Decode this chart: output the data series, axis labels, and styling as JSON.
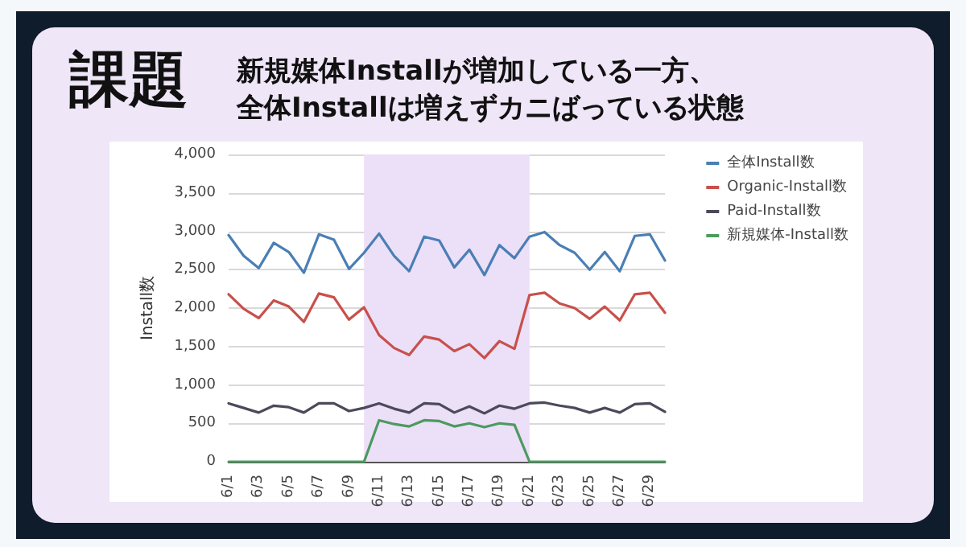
{
  "chart_data": {
    "type": "line",
    "title": "課題",
    "subtitle": "新規媒体Installが増加している一方、全体Installは増えずカニばっている状態",
    "ylabel": "Install数",
    "x": [
      "--06-01",
      "--06-02",
      "--06-03",
      "--06-04",
      "--06-05",
      "--06-06",
      "--06-07",
      "--06-08",
      "--06-09",
      "--06-10",
      "--06-11",
      "--06-12",
      "--06-13",
      "--06-14",
      "--06-15",
      "--06-16",
      "--06-17",
      "--06-18",
      "--06-19",
      "--06-20",
      "--06-21",
      "--06-22",
      "--06-23",
      "--06-24",
      "--06-25",
      "--06-26",
      "--06-27",
      "--06-28",
      "--06-29",
      "--06-30"
    ],
    "xlim": [
      "--06-01",
      "--06-30"
    ],
    "xticks": [
      {
        "value": "--06-01",
        "label": "6/1"
      },
      {
        "value": "--06-03",
        "label": "6/3"
      },
      {
        "value": "--06-05",
        "label": "6/5"
      },
      {
        "value": "--06-07",
        "label": "6/7"
      },
      {
        "value": "--06-09",
        "label": "6/9"
      },
      {
        "value": "--06-11",
        "label": "6/11"
      },
      {
        "value": "--06-13",
        "label": "6/13"
      },
      {
        "value": "--06-15",
        "label": "6/15"
      },
      {
        "value": "--06-17",
        "label": "6/17"
      },
      {
        "value": "--06-19",
        "label": "6/19"
      },
      {
        "value": "--06-21",
        "label": "6/21"
      },
      {
        "value": "--06-23",
        "label": "6/23"
      },
      {
        "value": "--06-25",
        "label": "6/25"
      },
      {
        "value": "--06-27",
        "label": "6/27"
      },
      {
        "value": "--06-29",
        "label": "6/29"
      }
    ],
    "ylim": [
      0,
      4000
    ],
    "yticks": [
      0,
      {
        "value": 500,
        "label": "500"
      },
      {
        "value": 1000,
        "label": "1,000"
      },
      {
        "value": 1500,
        "label": "1,500"
      },
      {
        "value": 2000,
        "label": "2,000"
      },
      {
        "value": 2500,
        "label": "2,500"
      },
      {
        "value": 3000,
        "label": "3,000"
      },
      {
        "value": 3500,
        "label": "3,500"
      },
      {
        "value": 4000,
        "label": "4,000"
      }
    ],
    "series": [
      {
        "name": "全体Install数",
        "color": "#4a7fb5",
        "values": [
          2950,
          2680,
          2520,
          2850,
          2730,
          2460,
          2960,
          2890,
          2510,
          2720,
          2970,
          2680,
          2480,
          2930,
          2880,
          2530,
          2760,
          2430,
          2820,
          2650,
          2930,
          2990,
          2820,
          2720,
          2500,
          2730,
          2480,
          2940,
          2960,
          2620
        ]
      },
      {
        "name": "Organic-Install数",
        "color": "#c8504b",
        "values": [
          2180,
          1990,
          1870,
          2100,
          2020,
          1820,
          2190,
          2140,
          1850,
          2010,
          1650,
          1480,
          1390,
          1630,
          1590,
          1440,
          1530,
          1350,
          1570,
          1470,
          2170,
          2200,
          2060,
          2000,
          1860,
          2020,
          1840,
          2180,
          2200,
          1940
        ]
      },
      {
        "name": "Paid-Install数",
        "color": "#4b4a5a",
        "values": [
          760,
          700,
          640,
          730,
          710,
          640,
          760,
          760,
          660,
          700,
          760,
          690,
          640,
          760,
          750,
          640,
          720,
          630,
          730,
          690,
          760,
          770,
          730,
          700,
          640,
          700,
          640,
          750,
          760,
          650
        ]
      },
      {
        "name": "新規媒体-Install数",
        "color": "#4c9a5f",
        "values": [
          0,
          0,
          0,
          0,
          0,
          0,
          0,
          0,
          0,
          0,
          540,
          490,
          460,
          540,
          530,
          460,
          500,
          450,
          500,
          480,
          0,
          0,
          0,
          0,
          0,
          0,
          0,
          0,
          0,
          0
        ]
      }
    ],
    "bands": [
      {
        "axis": "x",
        "from": "--06-10",
        "to": "--06-21",
        "color": "#ecdff8"
      }
    ],
    "grid": "y",
    "legend": "top right",
    "marker": "none",
    "line_style": "solid"
  }
}
